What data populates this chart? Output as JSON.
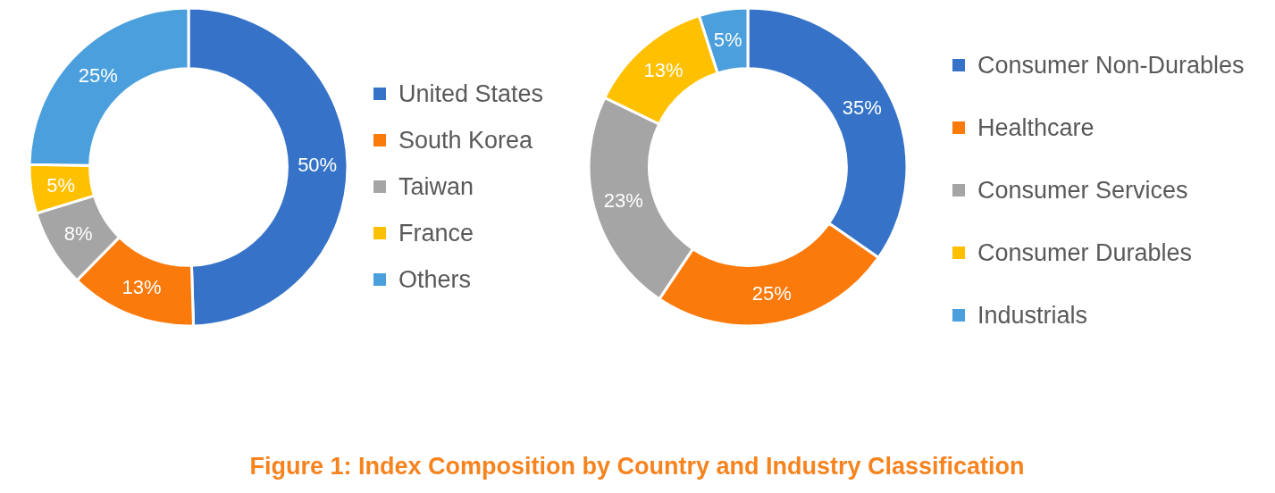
{
  "chart_data": [
    {
      "type": "donut",
      "title": "Figure 1: Index Composition by Country and Industry Classification",
      "categories": [
        "United States",
        "South Korea",
        "Taiwan",
        "France",
        "Others"
      ],
      "values": [
        50,
        13,
        8,
        5,
        25
      ],
      "value_labels": [
        "50%",
        "13%",
        "8%",
        "5%",
        "25%"
      ],
      "legend": "right",
      "colors": [
        "#3673c8",
        "#fb7a0c",
        "#a5a5a5",
        "#ffc000",
        "#4a9fdc"
      ]
    },
    {
      "type": "donut",
      "categories": [
        "Consumer Non-Durables",
        "Healthcare",
        "Consumer Services",
        "Consumer Durables",
        "Industrials"
      ],
      "values": [
        35,
        25,
        23,
        13,
        5
      ],
      "value_labels": [
        "35%",
        "25%",
        "23%",
        "13%",
        "5%"
      ],
      "legend": "right",
      "colors": [
        "#3673c8",
        "#fb7a0c",
        "#a5a5a5",
        "#ffc000",
        "#4a9fdc"
      ]
    }
  ]
}
